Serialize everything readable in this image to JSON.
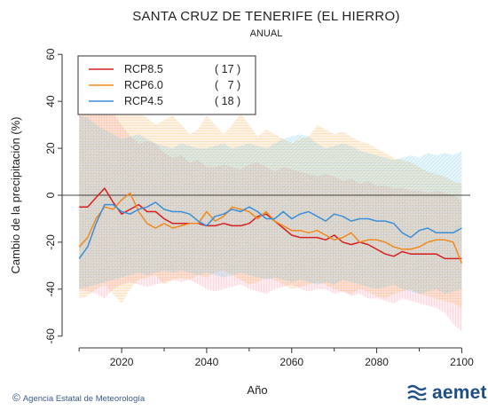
{
  "chart_data": {
    "type": "line",
    "title": "SANTA CRUZ DE TENERIFE (EL HIERRO)",
    "subtitle": "ANUAL",
    "xlabel": "Año",
    "ylabel": "Cambio de la precipitación (%)",
    "xlim": [
      2006,
      2102
    ],
    "ylim": [
      -65,
      65
    ],
    "x_ticks": [
      2020,
      2040,
      2060,
      2080,
      2100
    ],
    "y_ticks": [
      -60,
      -40,
      -20,
      0,
      20,
      40,
      60
    ],
    "zero_line": 0,
    "legend_position": "top-left",
    "series": [
      {
        "name": "RCP8.5",
        "count": "( 17 )",
        "color": "#d62020",
        "x": [
          2010,
          2012,
          2014,
          2016,
          2018,
          2020,
          2022,
          2024,
          2026,
          2028,
          2030,
          2032,
          2034,
          2036,
          2038,
          2040,
          2042,
          2044,
          2046,
          2048,
          2050,
          2052,
          2054,
          2056,
          2058,
          2060,
          2062,
          2064,
          2066,
          2068,
          2070,
          2072,
          2074,
          2076,
          2078,
          2080,
          2082,
          2084,
          2086,
          2088,
          2090,
          2092,
          2094,
          2096,
          2098,
          2100
        ],
        "values": [
          -5,
          -5,
          -1,
          3,
          -3,
          -8,
          -6,
          -4,
          -7,
          -7,
          -10,
          -12,
          -12,
          -12,
          -12,
          -13,
          -13,
          -12,
          -13,
          -13,
          -12,
          -9,
          -8,
          -11,
          -14,
          -17,
          -18,
          -18,
          -18,
          -19,
          -17,
          -20,
          -21,
          -20,
          -21,
          -23,
          -25,
          -26,
          -24,
          -25,
          -25,
          -25,
          -25,
          -27,
          -27,
          -27
        ],
        "band_upper": [
          39,
          38,
          40,
          42,
          35,
          30,
          25,
          22,
          23,
          22,
          18,
          16,
          17,
          14,
          15,
          12,
          12,
          13,
          12,
          11,
          13,
          14,
          12,
          10,
          12,
          11,
          10,
          9,
          8,
          9,
          8,
          6,
          7,
          5,
          6,
          4,
          4,
          3,
          3,
          2,
          2,
          1,
          2,
          1,
          0,
          -2
        ],
        "band_lower": [
          -40,
          -41,
          -42,
          -44,
          -40,
          -38,
          -37,
          -38,
          -39,
          -38,
          -37,
          -36,
          -37,
          -36,
          -38,
          -40,
          -41,
          -40,
          -39,
          -38,
          -40,
          -41,
          -42,
          -40,
          -39,
          -38,
          -40,
          -41,
          -40,
          -40,
          -42,
          -41,
          -43,
          -42,
          -44,
          -44,
          -45,
          -46,
          -44,
          -45,
          -46,
          -47,
          -48,
          -50,
          -55,
          -58
        ]
      },
      {
        "name": "RCP6.0",
        "count": "(   7 )",
        "color": "#f08a1e",
        "x": [
          2010,
          2012,
          2014,
          2016,
          2018,
          2020,
          2022,
          2024,
          2026,
          2028,
          2030,
          2032,
          2034,
          2036,
          2038,
          2040,
          2042,
          2044,
          2046,
          2048,
          2050,
          2052,
          2054,
          2056,
          2058,
          2060,
          2062,
          2064,
          2066,
          2068,
          2070,
          2072,
          2074,
          2076,
          2078,
          2080,
          2082,
          2084,
          2086,
          2088,
          2090,
          2092,
          2094,
          2096,
          2098,
          2100
        ],
        "values": [
          -22,
          -18,
          -10,
          -5,
          -6,
          -2,
          1,
          -7,
          -12,
          -14,
          -12,
          -14,
          -13,
          -12,
          -12,
          -7,
          -11,
          -9,
          -5,
          -6,
          -7,
          -10,
          -7,
          -11,
          -13,
          -15,
          -15,
          -16,
          -15,
          -17,
          -19,
          -18,
          -16,
          -20,
          -19,
          -19,
          -20,
          -22,
          -23,
          -23,
          -22,
          -20,
          -19,
          -19,
          -20,
          -29
        ],
        "band_upper": [
          36,
          38,
          42,
          40,
          38,
          44,
          40,
          36,
          33,
          30,
          32,
          34,
          30,
          26,
          28,
          34,
          30,
          26,
          30,
          35,
          30,
          25,
          28,
          26,
          24,
          22,
          24,
          25,
          30,
          28,
          26,
          27,
          25,
          23,
          22,
          20,
          18,
          16,
          15,
          14,
          12,
          10,
          9,
          8,
          6,
          5
        ],
        "band_lower": [
          -44,
          -43,
          -40,
          -38,
          -42,
          -46,
          -40,
          -36,
          -35,
          -34,
          -38,
          -36,
          -35,
          -36,
          -34,
          -35,
          -33,
          -32,
          -34,
          -36,
          -38,
          -37,
          -35,
          -36,
          -38,
          -40,
          -39,
          -38,
          -37,
          -38,
          -40,
          -41,
          -42,
          -40,
          -41,
          -43,
          -44,
          -42,
          -41,
          -40,
          -42,
          -43,
          -44,
          -45,
          -46,
          -48
        ]
      },
      {
        "name": "RCP4.5",
        "count": "( 18 )",
        "color": "#3a8fd9",
        "x": [
          2010,
          2012,
          2014,
          2016,
          2018,
          2020,
          2022,
          2024,
          2026,
          2028,
          2030,
          2032,
          2034,
          2036,
          2038,
          2040,
          2042,
          2044,
          2046,
          2048,
          2050,
          2052,
          2054,
          2056,
          2058,
          2060,
          2062,
          2064,
          2066,
          2068,
          2070,
          2072,
          2074,
          2076,
          2078,
          2080,
          2082,
          2084,
          2086,
          2088,
          2090,
          2092,
          2094,
          2096,
          2098,
          2100
        ],
        "values": [
          -27,
          -22,
          -12,
          -4,
          -4,
          -7,
          -8,
          -6,
          -5,
          -3,
          -6,
          -7,
          -7,
          -8,
          -11,
          -13,
          -9,
          -8,
          -6,
          -7,
          -5,
          -7,
          -10,
          -10,
          -7,
          -10,
          -8,
          -7,
          -9,
          -11,
          -8,
          -9,
          -11,
          -10,
          -10,
          -11,
          -11,
          -12,
          -16,
          -18,
          -15,
          -14,
          -16,
          -16,
          -16,
          -14
        ],
        "band_upper": [
          34,
          33,
          30,
          28,
          26,
          24,
          25,
          26,
          24,
          22,
          21,
          20,
          22,
          21,
          20,
          20,
          21,
          22,
          20,
          21,
          22,
          21,
          20,
          22,
          24,
          25,
          26,
          25,
          22,
          20,
          21,
          22,
          21,
          19,
          18,
          17,
          16,
          15,
          16,
          17,
          16,
          18,
          17,
          18,
          17,
          19
        ],
        "band_lower": [
          -40,
          -39,
          -38,
          -37,
          -36,
          -35,
          -34,
          -33,
          -34,
          -33,
          -32,
          -33,
          -32,
          -33,
          -34,
          -33,
          -34,
          -35,
          -34,
          -33,
          -34,
          -35,
          -36,
          -35,
          -36,
          -37,
          -36,
          -37,
          -38,
          -37,
          -38,
          -36,
          -37,
          -38,
          -39,
          -40,
          -39,
          -38,
          -40,
          -41,
          -42,
          -41,
          -40,
          -42,
          -41,
          -40
        ]
      }
    ]
  },
  "footer": {
    "credit_symbol": "©",
    "credit": "Agencia Estatal de Meteorología",
    "logo_text": "aemet"
  }
}
